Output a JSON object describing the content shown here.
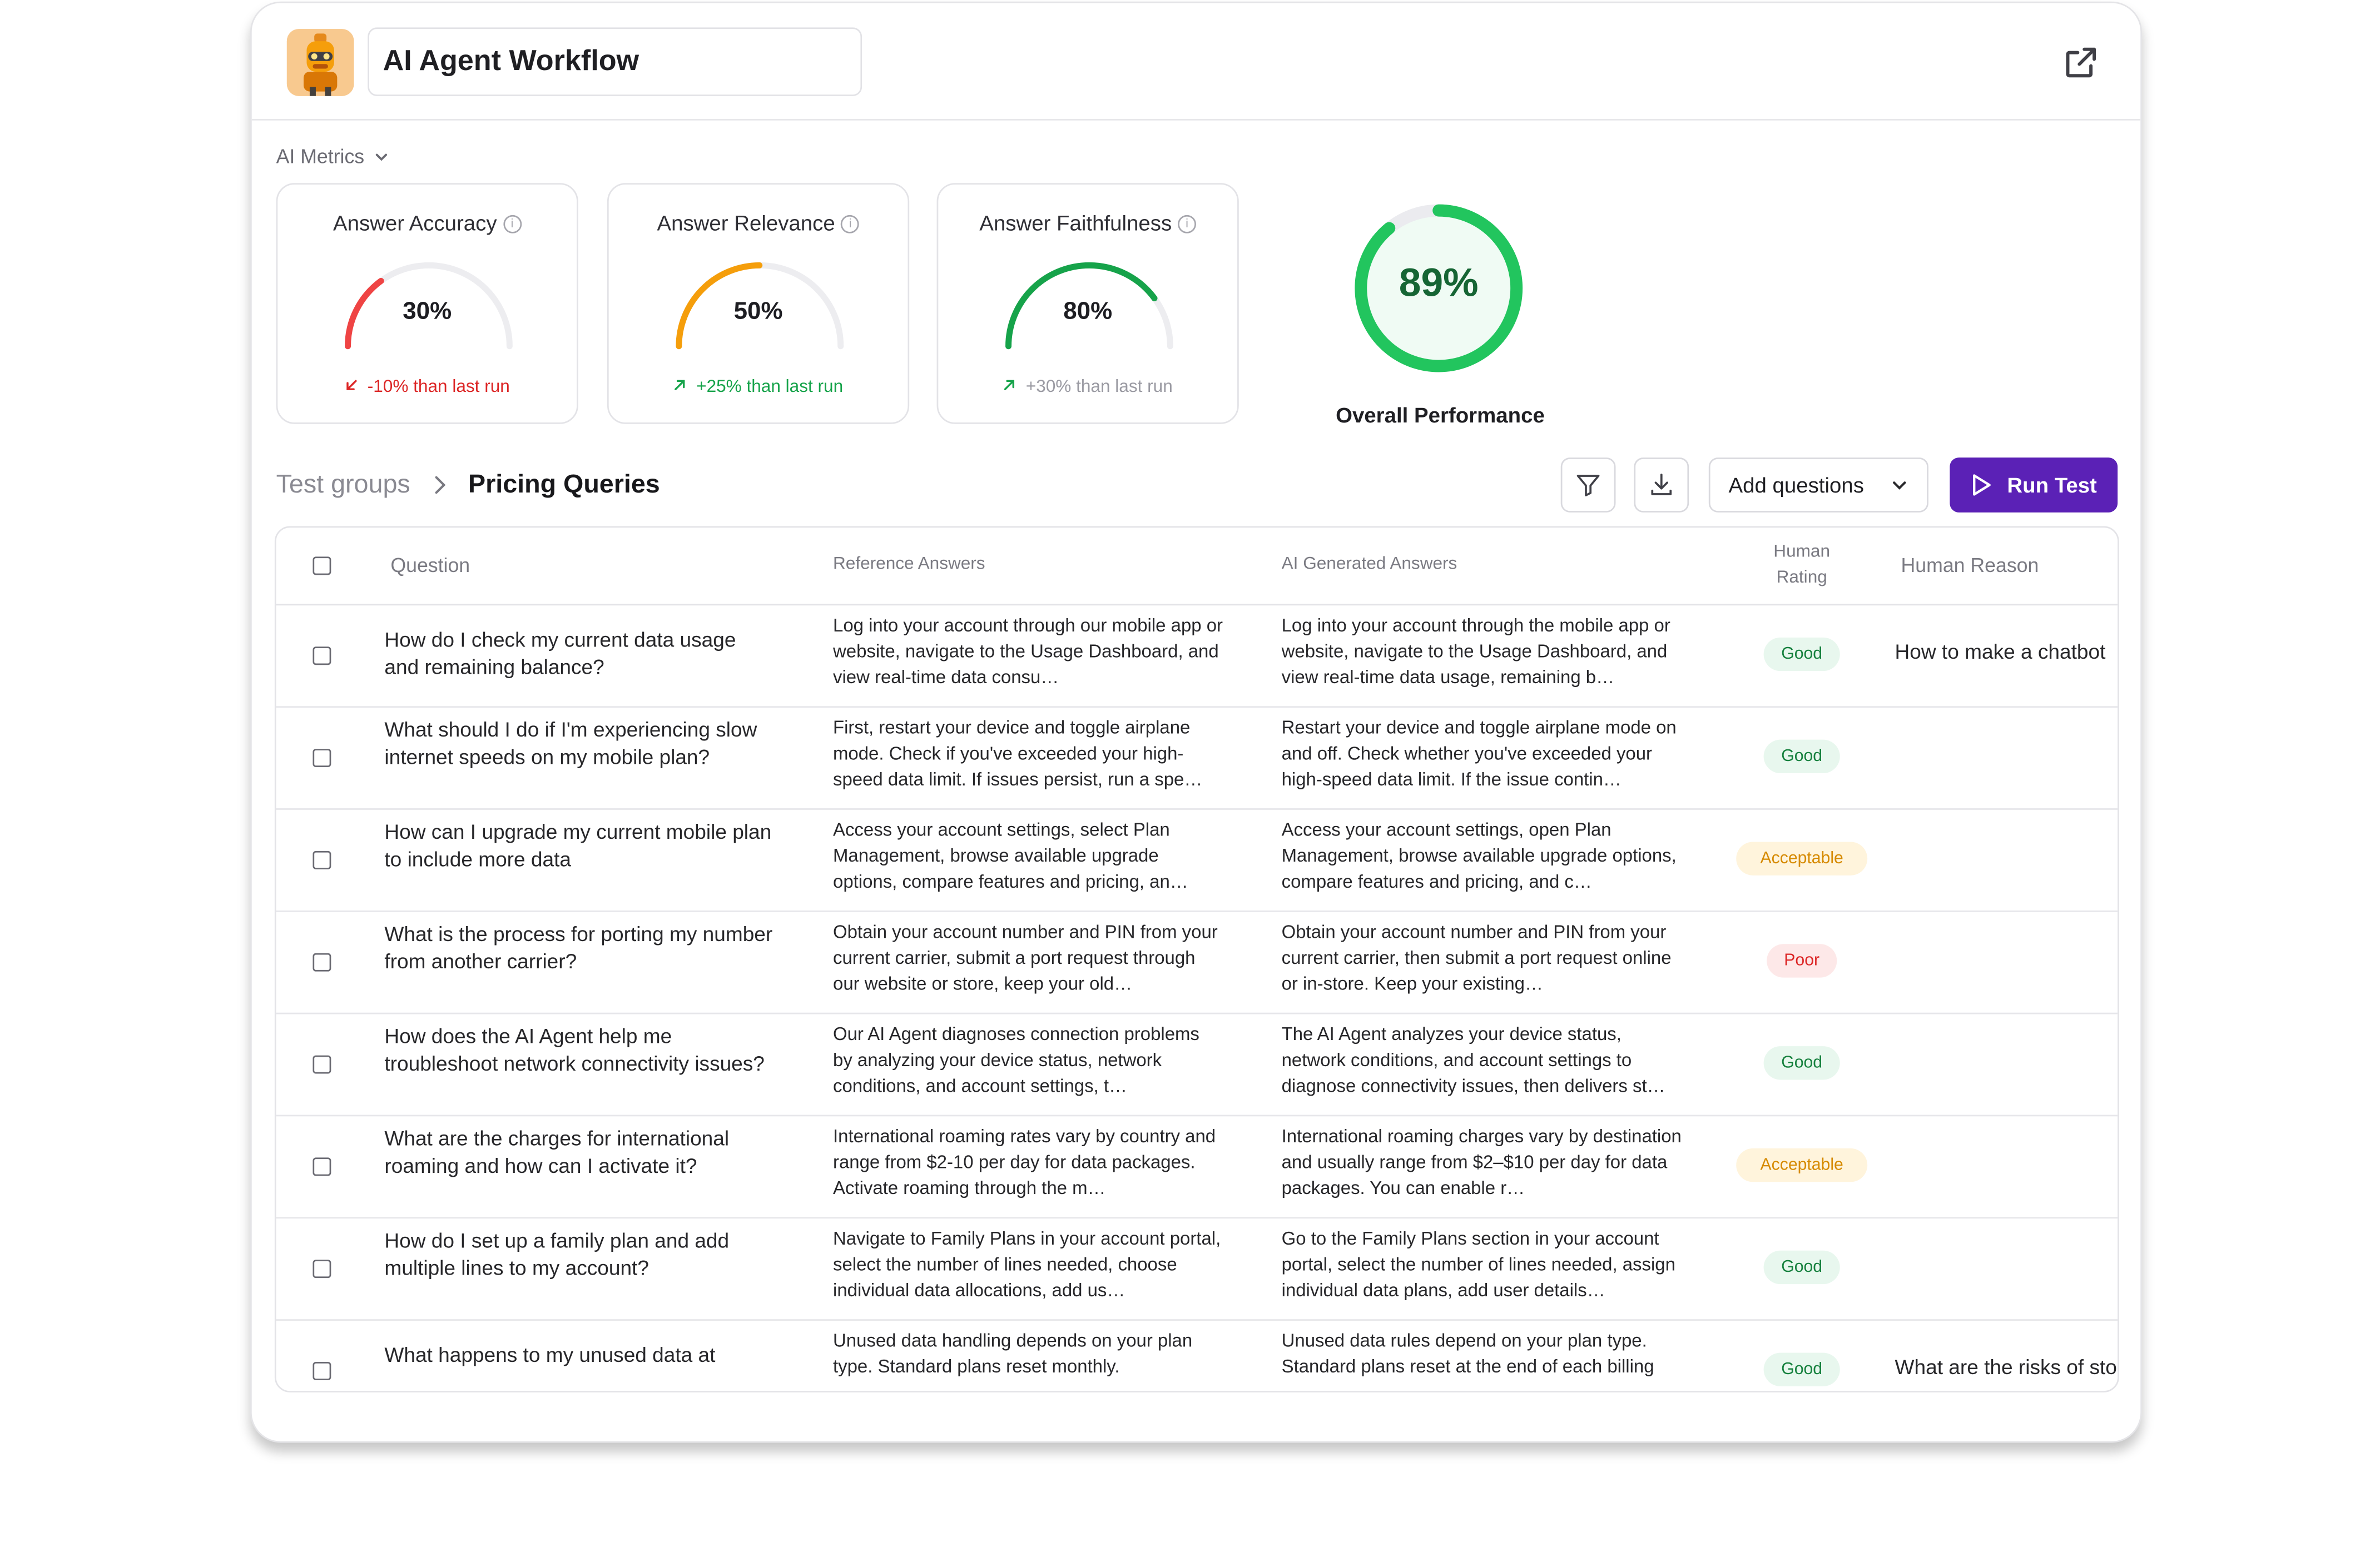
{
  "header": {
    "title": "AI Agent Workflow"
  },
  "metrics": {
    "section_label": "AI Metrics",
    "cards": [
      {
        "title": "Answer Accuracy",
        "value": "30%",
        "delta": "-10% than last run",
        "delta_dir": "down",
        "color": "#ef4444",
        "fraction": 0.3
      },
      {
        "title": "Answer Relevance",
        "value": "50%",
        "delta": "+25% than last run",
        "delta_dir": "up",
        "color": "#f59e0b",
        "fraction": 0.5
      },
      {
        "title": "Answer Faithfulness",
        "value": "80%",
        "delta": "+30% than last run",
        "delta_dir": "up",
        "color": "#16a34a",
        "fraction": 0.8
      }
    ],
    "overall": {
      "value": "89%",
      "label": "Overall Performance",
      "fraction": 0.89,
      "color": "#22c55e"
    }
  },
  "breadcrumb": {
    "root": "Test groups",
    "current": "Pricing Queries"
  },
  "toolbar": {
    "add_questions": "Add questions",
    "run_test": "Run Test"
  },
  "table": {
    "columns": {
      "question": "Question",
      "reference": "Reference Answers",
      "ai": "AI Generated Answers",
      "rating": "Human Rating",
      "reason": "Human Reason"
    },
    "rows": [
      {
        "question": "How do I check my current data usage and remaining balance?",
        "reference": "Log into your account through our mobile app or website, navigate to the Usage Dashboard, and view real-time data consu…",
        "ai": "Log into your account through the mobile app or website, navigate to the Usage Dashboard, and view real-time data usage, remaining b…",
        "rating": "Good",
        "reason": "How to make a chatbot"
      },
      {
        "question": "What should I do if I'm experiencing slow internet speeds on my mobile plan?",
        "reference": "First, restart your device and toggle airplane mode. Check if you've exceeded your high-speed data limit. If issues persist, run a spe…",
        "ai": "Restart your device and toggle airplane mode on and off. Check whether you've exceeded your high-speed data limit. If the issue contin…",
        "rating": "Good",
        "reason": ""
      },
      {
        "question": "How can I upgrade my current mobile plan to include more data",
        "reference": "Access your account settings, select Plan Management, browse available upgrade options, compare features and pricing, an…",
        "ai": "Access your account settings, open Plan Management, browse available upgrade options, compare features and pricing, and c…",
        "rating": "Acceptable",
        "reason": ""
      },
      {
        "question": "What is the process for porting my number from another carrier?",
        "reference": "Obtain your account number and PIN from your current carrier, submit a port request through our website or store, keep your old…",
        "ai": "Obtain your account number and PIN from your current carrier, then submit a port request online or in-store. Keep your existing…",
        "rating": "Poor",
        "reason": ""
      },
      {
        "question": "How does the AI Agent help me troubleshoot network connectivity issues?",
        "reference": "Our AI Agent diagnoses connection problems by analyzing your device status, network conditions, and account settings, t…",
        "ai": "The AI Agent analyzes your device status, network conditions, and account settings to diagnose connectivity issues, then delivers st…",
        "rating": "Good",
        "reason": ""
      },
      {
        "question": "What are the charges for international roaming and how can I activate it?",
        "reference": "International roaming rates vary by country and range from $2-10 per day for data packages. Activate roaming through the m…",
        "ai": "International roaming charges vary by destination and usually range from $2–$10 per day for data packages. You can enable r…",
        "rating": "Acceptable",
        "reason": ""
      },
      {
        "question": "How do I set up a family plan and add multiple lines to my account?",
        "reference": "Navigate to Family Plans in your account portal, select the number of lines needed, choose individual data allocations, add us…",
        "ai": "Go to the Family Plans section in your account portal, select the number of lines needed, assign individual data plans, add user details…",
        "rating": "Good",
        "reason": ""
      },
      {
        "question": "What happens to my unused data at",
        "reference": "Unused data handling depends on your plan type. Standard plans reset monthly.",
        "ai": "Unused data rules depend on your plan type. Standard plans reset at the end of each billing",
        "rating": "Good",
        "reason": "What are the risks of sto"
      }
    ]
  }
}
